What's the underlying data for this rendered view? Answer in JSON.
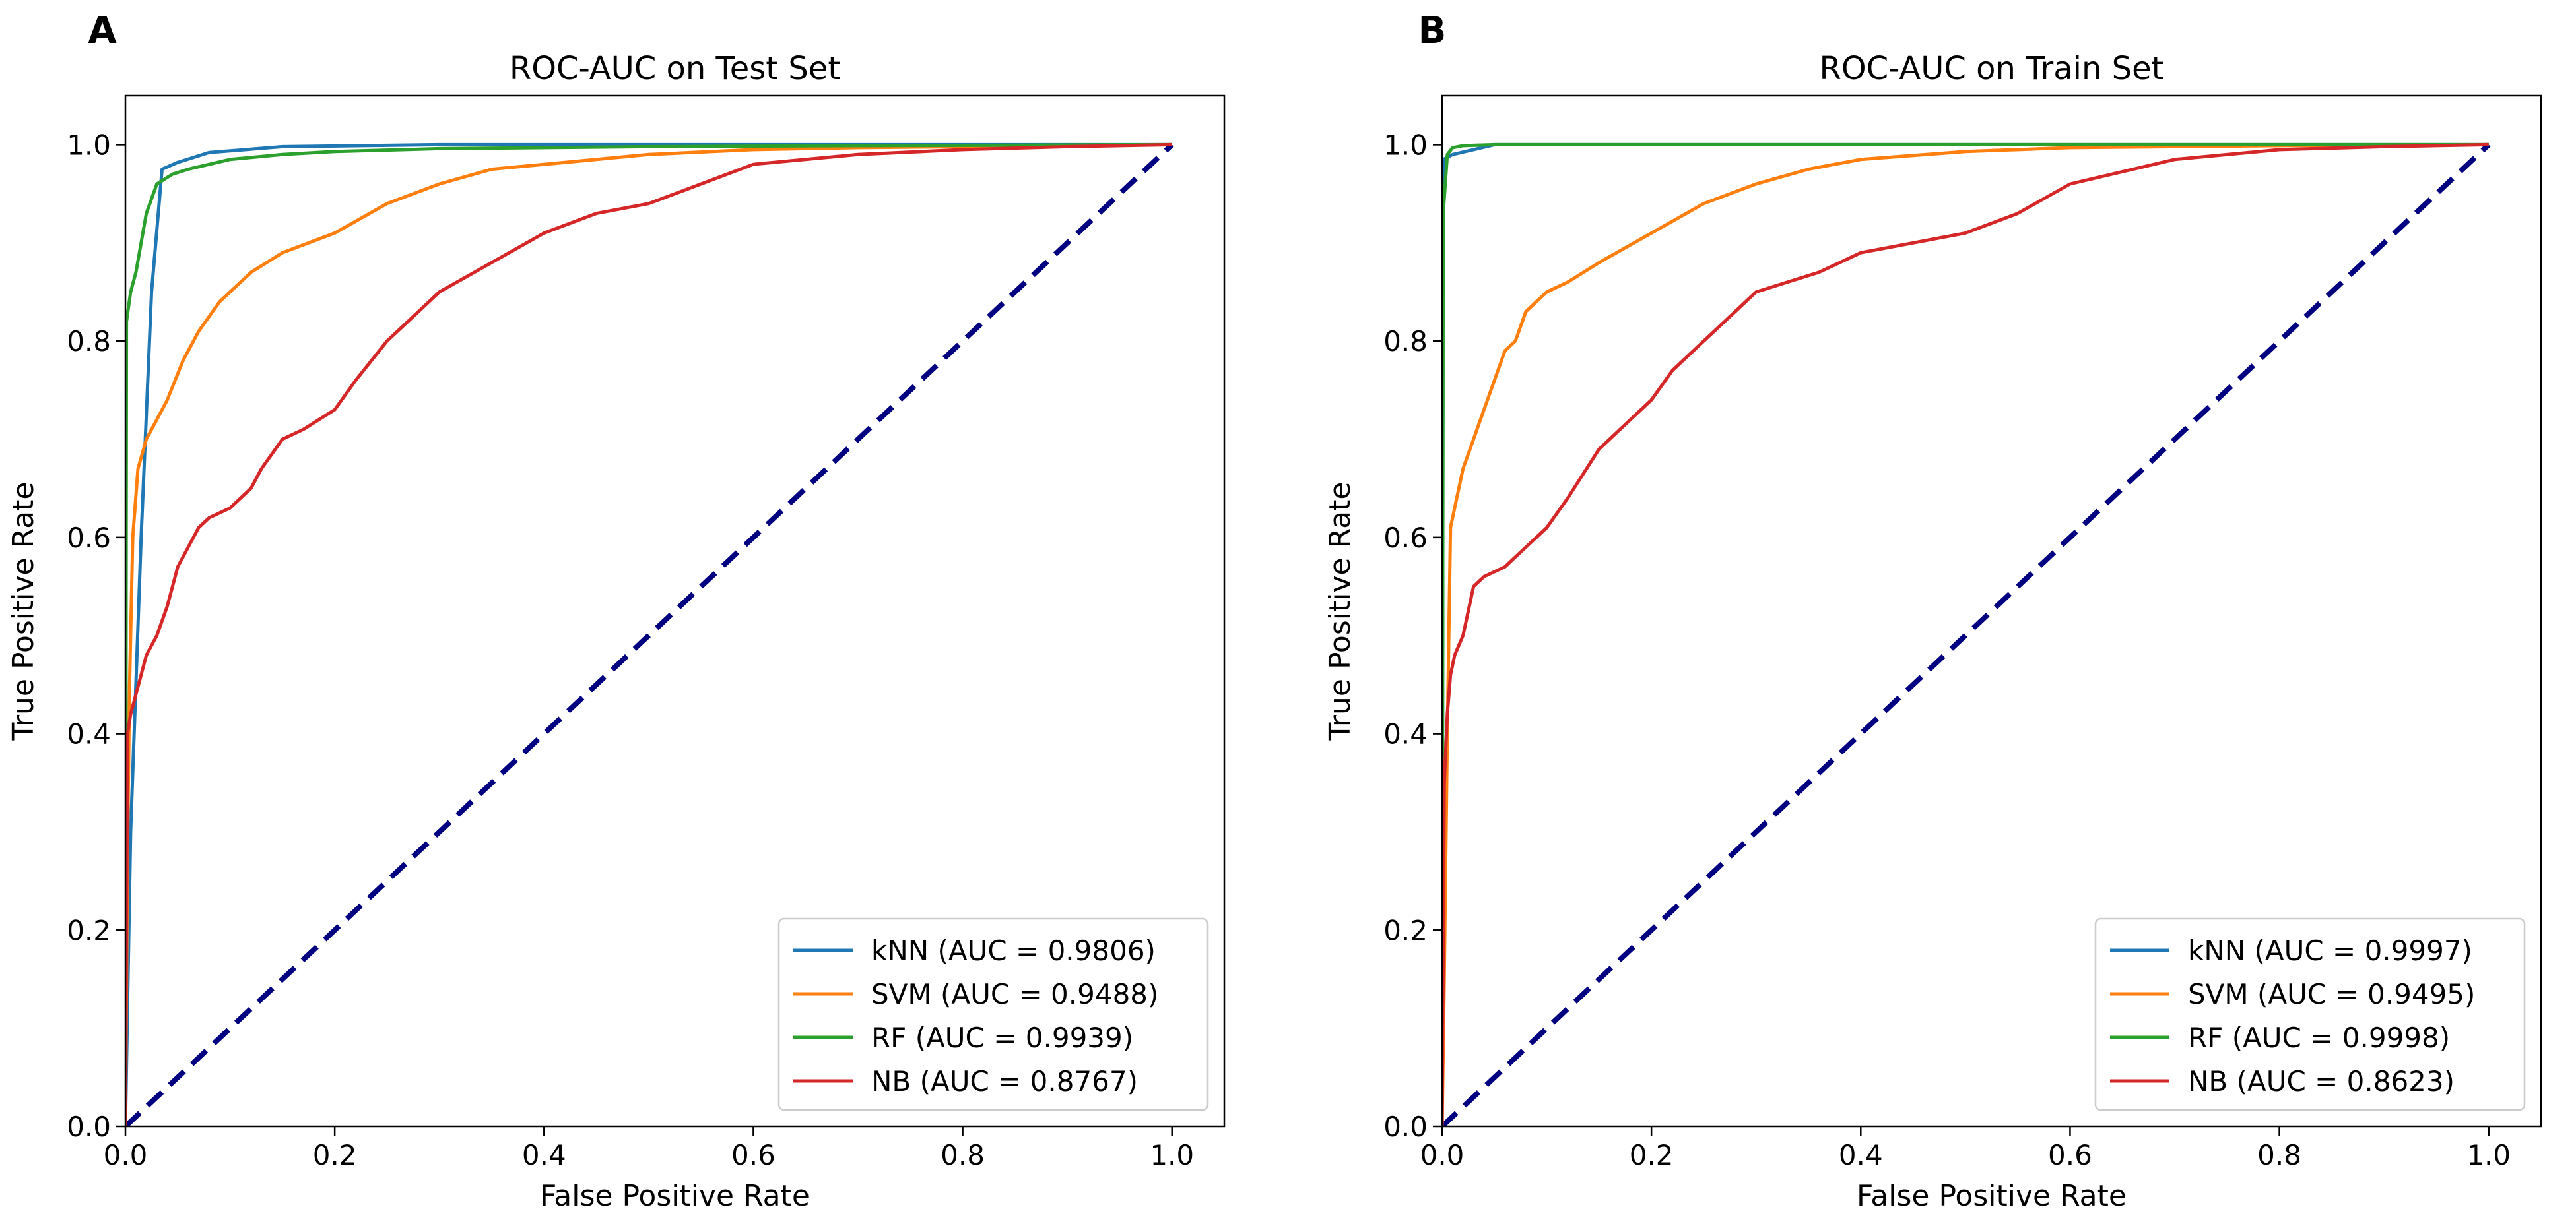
{
  "chart_data": [
    {
      "panel": "A",
      "type": "line",
      "title": "ROC-AUC on Test Set",
      "xlabel": "False Positive Rate",
      "ylabel": "True Positive Rate",
      "xlim": [
        0.0,
        1.0
      ],
      "ylim": [
        0.0,
        1.0
      ],
      "xticks": [
        "0.0",
        "0.2",
        "0.4",
        "0.6",
        "0.8",
        "1.0"
      ],
      "yticks": [
        "0.0",
        "0.2",
        "0.4",
        "0.6",
        "0.8",
        "1.0"
      ],
      "legend_position": "bottom-right",
      "diagonal": {
        "color": "#000080",
        "style": "dashed"
      },
      "series": [
        {
          "name": "kNN",
          "label": "kNN (AUC = 0.9806)",
          "color": "#1f77b4",
          "x": [
            0,
            0.005,
            0.015,
            0.025,
            0.035,
            0.05,
            0.08,
            0.15,
            0.3,
            0.6,
            1.0
          ],
          "y": [
            0,
            0.3,
            0.6,
            0.85,
            0.975,
            0.982,
            0.992,
            0.998,
            1.0,
            1.0,
            1.0
          ]
        },
        {
          "name": "SVM",
          "label": "SVM (AUC = 0.9488)",
          "color": "#ff7f0e",
          "x": [
            0,
            0.002,
            0.004,
            0.007,
            0.012,
            0.02,
            0.03,
            0.04,
            0.055,
            0.07,
            0.09,
            0.12,
            0.15,
            0.2,
            0.25,
            0.3,
            0.35,
            0.4,
            0.45,
            0.5,
            0.6,
            0.7,
            0.8,
            0.9,
            1.0
          ],
          "y": [
            0,
            0.28,
            0.45,
            0.6,
            0.67,
            0.7,
            0.72,
            0.74,
            0.78,
            0.81,
            0.84,
            0.87,
            0.89,
            0.91,
            0.94,
            0.96,
            0.975,
            0.98,
            0.985,
            0.99,
            0.995,
            0.997,
            0.998,
            0.999,
            1.0
          ]
        },
        {
          "name": "RF",
          "label": "RF (AUC = 0.9939)",
          "color": "#2ca02c",
          "x": [
            0,
            0.001,
            0.005,
            0.01,
            0.015,
            0.02,
            0.03,
            0.045,
            0.06,
            0.08,
            0.1,
            0.15,
            0.2,
            0.3,
            0.5,
            0.7,
            1.0
          ],
          "y": [
            0,
            0.82,
            0.85,
            0.87,
            0.9,
            0.93,
            0.96,
            0.97,
            0.975,
            0.98,
            0.985,
            0.99,
            0.993,
            0.996,
            0.998,
            0.999,
            1.0
          ]
        },
        {
          "name": "NB",
          "label": "NB (AUC = 0.8767)",
          "color": "#d62728",
          "x": [
            0,
            0.002,
            0.005,
            0.01,
            0.015,
            0.02,
            0.03,
            0.04,
            0.05,
            0.06,
            0.07,
            0.08,
            0.1,
            0.12,
            0.13,
            0.15,
            0.17,
            0.2,
            0.22,
            0.25,
            0.28,
            0.3,
            0.35,
            0.4,
            0.45,
            0.5,
            0.55,
            0.6,
            0.7,
            0.8,
            0.9,
            1.0
          ],
          "y": [
            0,
            0.4,
            0.42,
            0.44,
            0.46,
            0.48,
            0.5,
            0.53,
            0.57,
            0.59,
            0.61,
            0.62,
            0.63,
            0.65,
            0.67,
            0.7,
            0.71,
            0.73,
            0.76,
            0.8,
            0.83,
            0.85,
            0.88,
            0.91,
            0.93,
            0.94,
            0.96,
            0.98,
            0.99,
            0.995,
            0.998,
            1.0
          ]
        }
      ]
    },
    {
      "panel": "B",
      "type": "line",
      "title": "ROC-AUC on Train Set",
      "xlabel": "False Positive Rate",
      "ylabel": "True Positive Rate",
      "xlim": [
        0.0,
        1.0
      ],
      "ylim": [
        0.0,
        1.0
      ],
      "xticks": [
        "0.0",
        "0.2",
        "0.4",
        "0.6",
        "0.8",
        "1.0"
      ],
      "yticks": [
        "0.0",
        "0.2",
        "0.4",
        "0.6",
        "0.8",
        "1.0"
      ],
      "legend_position": "bottom-right",
      "diagonal": {
        "color": "#000080",
        "style": "dashed"
      },
      "series": [
        {
          "name": "kNN",
          "label": "kNN (AUC = 0.9997)",
          "color": "#1f77b4",
          "x": [
            0,
            0.001,
            0.01,
            0.03,
            0.05,
            0.1,
            0.5,
            1.0
          ],
          "y": [
            0,
            0.985,
            0.99,
            0.995,
            1.0,
            1.0,
            1.0,
            1.0
          ]
        },
        {
          "name": "SVM",
          "label": "SVM (AUC = 0.9495)",
          "color": "#ff7f0e",
          "x": [
            0,
            0.002,
            0.005,
            0.008,
            0.012,
            0.02,
            0.03,
            0.04,
            0.05,
            0.06,
            0.07,
            0.08,
            0.1,
            0.12,
            0.15,
            0.2,
            0.25,
            0.3,
            0.35,
            0.4,
            0.5,
            0.6,
            0.8,
            1.0
          ],
          "y": [
            0,
            0.15,
            0.4,
            0.61,
            0.63,
            0.67,
            0.7,
            0.73,
            0.76,
            0.79,
            0.8,
            0.83,
            0.85,
            0.86,
            0.88,
            0.91,
            0.94,
            0.96,
            0.975,
            0.985,
            0.993,
            0.997,
            0.999,
            1.0
          ]
        },
        {
          "name": "RF",
          "label": "RF (AUC = 0.9998)",
          "color": "#2ca02c",
          "x": [
            0,
            0.001,
            0.005,
            0.01,
            0.02,
            0.05,
            0.1,
            1.0
          ],
          "y": [
            0,
            0.93,
            0.99,
            0.997,
            0.999,
            1.0,
            1.0,
            1.0
          ]
        },
        {
          "name": "NB",
          "label": "NB (AUC = 0.8623)",
          "color": "#d62728",
          "x": [
            0,
            0.002,
            0.005,
            0.008,
            0.012,
            0.02,
            0.03,
            0.04,
            0.06,
            0.08,
            0.1,
            0.12,
            0.15,
            0.18,
            0.2,
            0.22,
            0.25,
            0.28,
            0.3,
            0.33,
            0.36,
            0.4,
            0.45,
            0.5,
            0.55,
            0.6,
            0.7,
            0.8,
            0.9,
            1.0
          ],
          "y": [
            0,
            0.35,
            0.42,
            0.46,
            0.48,
            0.5,
            0.55,
            0.56,
            0.57,
            0.59,
            0.61,
            0.64,
            0.69,
            0.72,
            0.74,
            0.77,
            0.8,
            0.83,
            0.85,
            0.86,
            0.87,
            0.89,
            0.9,
            0.91,
            0.93,
            0.96,
            0.985,
            0.995,
            0.998,
            1.0
          ]
        }
      ]
    }
  ]
}
